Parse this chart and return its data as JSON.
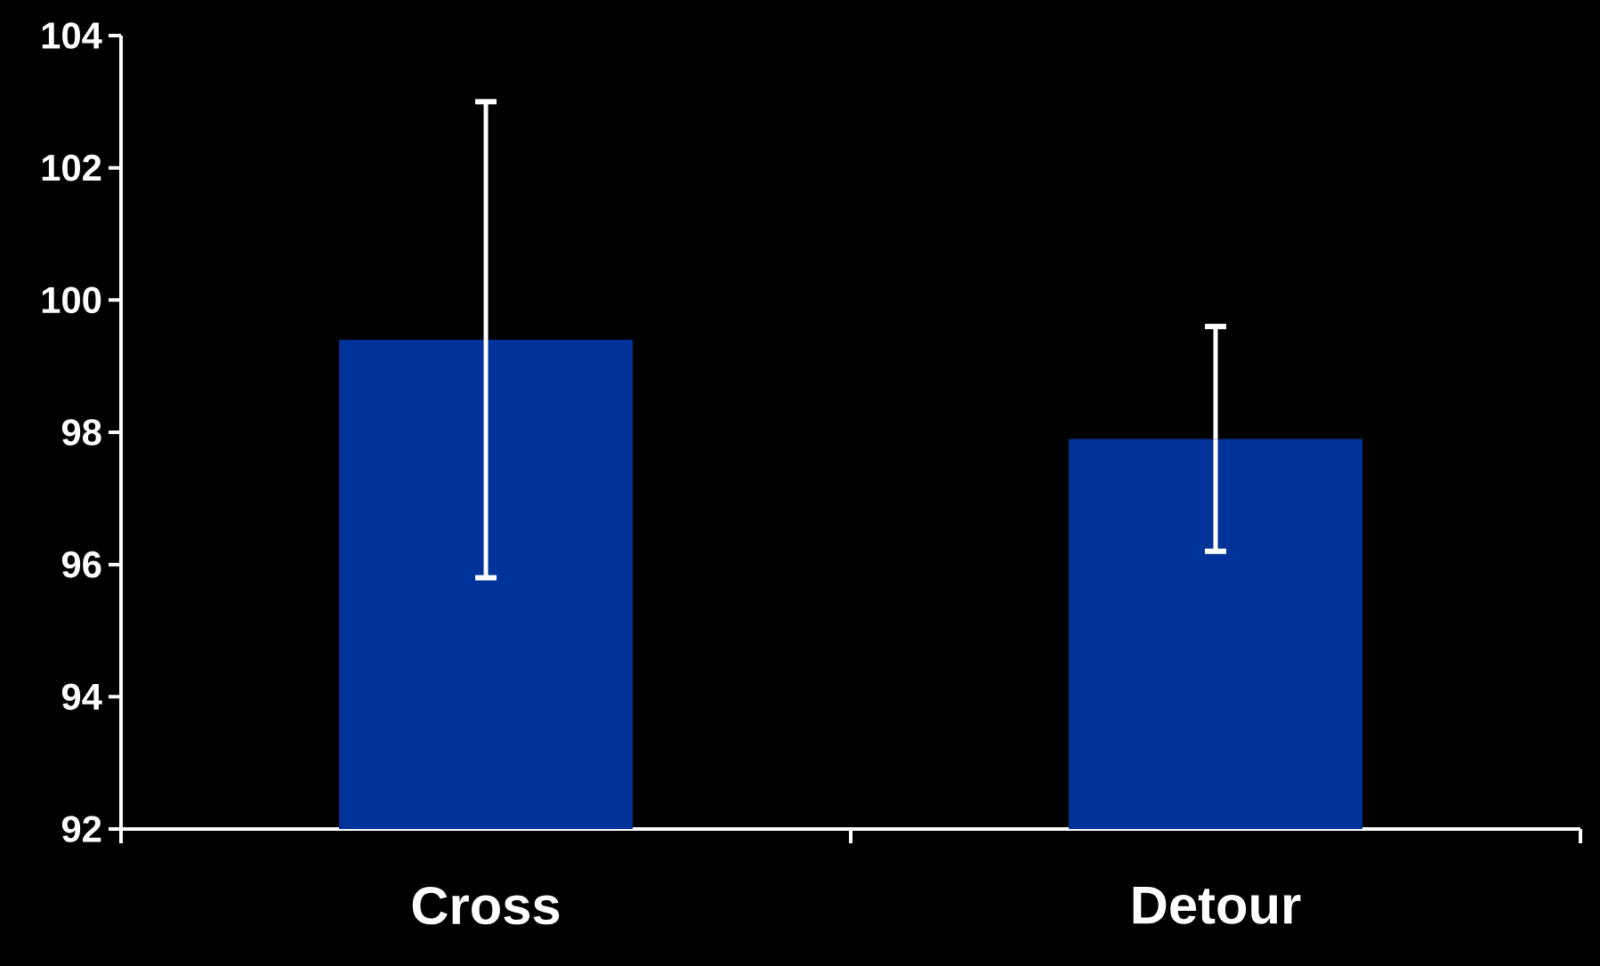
{
  "chart_data": {
    "type": "bar",
    "categories": [
      "Cross",
      "Detour"
    ],
    "values": [
      99.4,
      97.9
    ],
    "errors": [
      3.6,
      1.7
    ],
    "color": "#003399",
    "ylim": [
      92,
      104
    ],
    "yticks": [
      92,
      94,
      96,
      98,
      100,
      102,
      104
    ]
  }
}
